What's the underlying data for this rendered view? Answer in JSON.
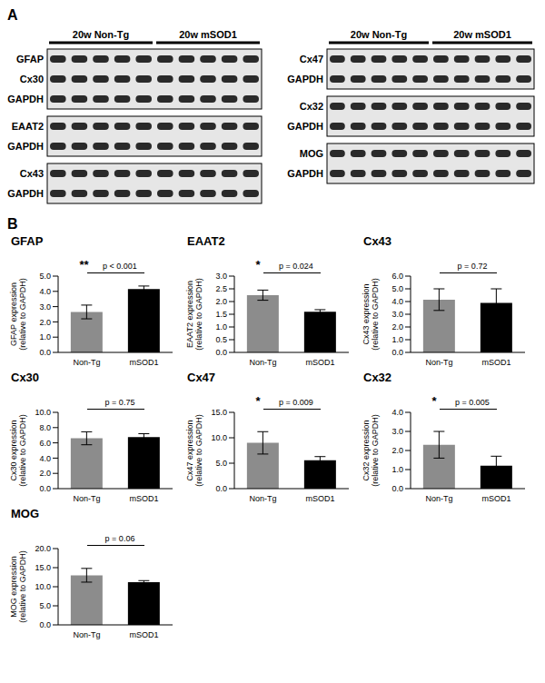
{
  "figure": {
    "panel_labels": [
      "A",
      "B"
    ],
    "blots": {
      "groups": [
        "20w Non-Tg",
        "20w mSOD1"
      ],
      "lanes_per_group": 5,
      "left": [
        [
          "GFAP",
          "Cx30",
          "GAPDH"
        ],
        [
          "EAAT2",
          "GAPDH"
        ],
        [
          "Cx43",
          "GAPDH"
        ]
      ],
      "right": [
        [
          "Cx47",
          "GAPDH"
        ],
        [
          "Cx32",
          "GAPDH"
        ],
        [
          "MOG",
          "GAPDH"
        ]
      ]
    }
  },
  "chart_data": [
    {
      "type": "bar",
      "title": "GFAP",
      "categories": [
        "Non-Tg",
        "mSOD1"
      ],
      "values": [
        2.65,
        4.15
      ],
      "errors": [
        0.45,
        0.2
      ],
      "colors": [
        "#8c8c8c",
        "#000000"
      ],
      "ylim": [
        0,
        5
      ],
      "yticks": [
        {
          "value": 0,
          "label": "0.0"
        },
        {
          "value": 1,
          "label": "1.0"
        },
        {
          "value": 2,
          "label": "2.0"
        },
        {
          "value": 3,
          "label": "3.0"
        },
        {
          "value": 4,
          "label": "4.0"
        },
        {
          "value": 5,
          "label": "5.0"
        }
      ],
      "y_label": "GFAP expression (relative to GAPDH)",
      "annotations": [
        "**",
        "p < 0.001"
      ]
    },
    {
      "type": "bar",
      "title": "EAAT2",
      "categories": [
        "Non-Tg",
        "mSOD1"
      ],
      "values": [
        2.25,
        1.6
      ],
      "errors": [
        0.2,
        0.08
      ],
      "colors": [
        "#8c8c8c",
        "#000000"
      ],
      "ylim": [
        0,
        3
      ],
      "yticks": [
        {
          "value": 0,
          "label": "0.0"
        },
        0.5,
        {
          "value": 1,
          "label": "1.0"
        },
        1.5,
        {
          "value": 2,
          "label": "2.0"
        },
        2.5,
        {
          "value": 3,
          "label": "3.0"
        }
      ],
      "y_label": "EAAT2 expression (relative to GAPDH)",
      "annotations": [
        "*",
        "p = 0.024"
      ]
    },
    {
      "type": "bar",
      "title": "Cx43",
      "categories": [
        "Non-Tg",
        "mSOD1"
      ],
      "values": [
        4.15,
        3.9
      ],
      "errors": [
        0.85,
        1.1
      ],
      "colors": [
        "#8c8c8c",
        "#000000"
      ],
      "ylim": [
        0,
        6
      ],
      "yticks": [
        {
          "value": 0,
          "label": "0.0"
        },
        {
          "value": 1,
          "label": "1.0"
        },
        {
          "value": 2,
          "label": "2.0"
        },
        {
          "value": 3,
          "label": "3.0"
        },
        {
          "value": 4,
          "label": "4.0"
        },
        {
          "value": 5,
          "label": "5.0"
        },
        {
          "value": 6,
          "label": "6.0"
        }
      ],
      "y_label": "Cx43 expression (relative to GAPDH)",
      "annotations": [
        "p = 0.72"
      ]
    },
    {
      "type": "bar",
      "title": "Cx30",
      "categories": [
        "Non-Tg",
        "mSOD1"
      ],
      "values": [
        6.6,
        6.75
      ],
      "errors": [
        0.85,
        0.45
      ],
      "colors": [
        "#8c8c8c",
        "#000000"
      ],
      "ylim": [
        0,
        10
      ],
      "yticks": [
        {
          "value": 0,
          "label": "0.0"
        },
        {
          "value": 2,
          "label": "2.0"
        },
        {
          "value": 4,
          "label": "4.0"
        },
        {
          "value": 6,
          "label": "6.0"
        },
        {
          "value": 8,
          "label": "8.0"
        },
        {
          "value": 10,
          "label": "10.0"
        }
      ],
      "y_label": "Cx30 expression (relative to GAPDH)",
      "annotations": [
        "p = 0.75"
      ]
    },
    {
      "type": "bar",
      "title": "Cx47",
      "categories": [
        "Non-Tg",
        "mSOD1"
      ],
      "values": [
        9.0,
        5.6
      ],
      "errors": [
        2.2,
        0.7
      ],
      "colors": [
        "#8c8c8c",
        "#000000"
      ],
      "ylim": [
        0,
        15
      ],
      "yticks": [
        {
          "value": 0,
          "label": "0.0"
        },
        {
          "value": 5,
          "label": "5.0"
        },
        {
          "value": 10,
          "label": "10.0"
        },
        {
          "value": 15,
          "label": "15.0"
        }
      ],
      "y_label": "Cx47 expression (relative to GAPDH)",
      "annotations": [
        "*",
        "p = 0.009"
      ]
    },
    {
      "type": "bar",
      "title": "Cx32",
      "categories": [
        "Non-Tg",
        "mSOD1"
      ],
      "values": [
        2.3,
        1.2
      ],
      "errors": [
        0.7,
        0.5
      ],
      "colors": [
        "#8c8c8c",
        "#000000"
      ],
      "ylim": [
        0,
        4
      ],
      "yticks": [
        {
          "value": 0,
          "label": "0.0"
        },
        {
          "value": 1,
          "label": "1.0"
        },
        {
          "value": 2,
          "label": "2.0"
        },
        {
          "value": 3,
          "label": "3.0"
        },
        {
          "value": 4,
          "label": "4.0"
        }
      ],
      "y_label": "Cx32 expression (relative to GAPDH)",
      "annotations": [
        "*",
        "p = 0.005"
      ]
    },
    {
      "type": "bar",
      "title": "MOG",
      "categories": [
        "Non-Tg",
        "mSOD1"
      ],
      "values": [
        13.0,
        11.2
      ],
      "errors": [
        1.8,
        0.4
      ],
      "colors": [
        "#8c8c8c",
        "#000000"
      ],
      "ylim": [
        0,
        20
      ],
      "yticks": [
        {
          "value": 0,
          "label": "0.0"
        },
        {
          "value": 5,
          "label": "5.0"
        },
        {
          "value": 10,
          "label": "10.0"
        },
        {
          "value": 15,
          "label": "15.0"
        },
        {
          "value": 20,
          "label": "20.0"
        }
      ],
      "y_label": "MOG expression (relative to GAPDH)",
      "annotations": [
        "p = 0.06"
      ]
    }
  ]
}
